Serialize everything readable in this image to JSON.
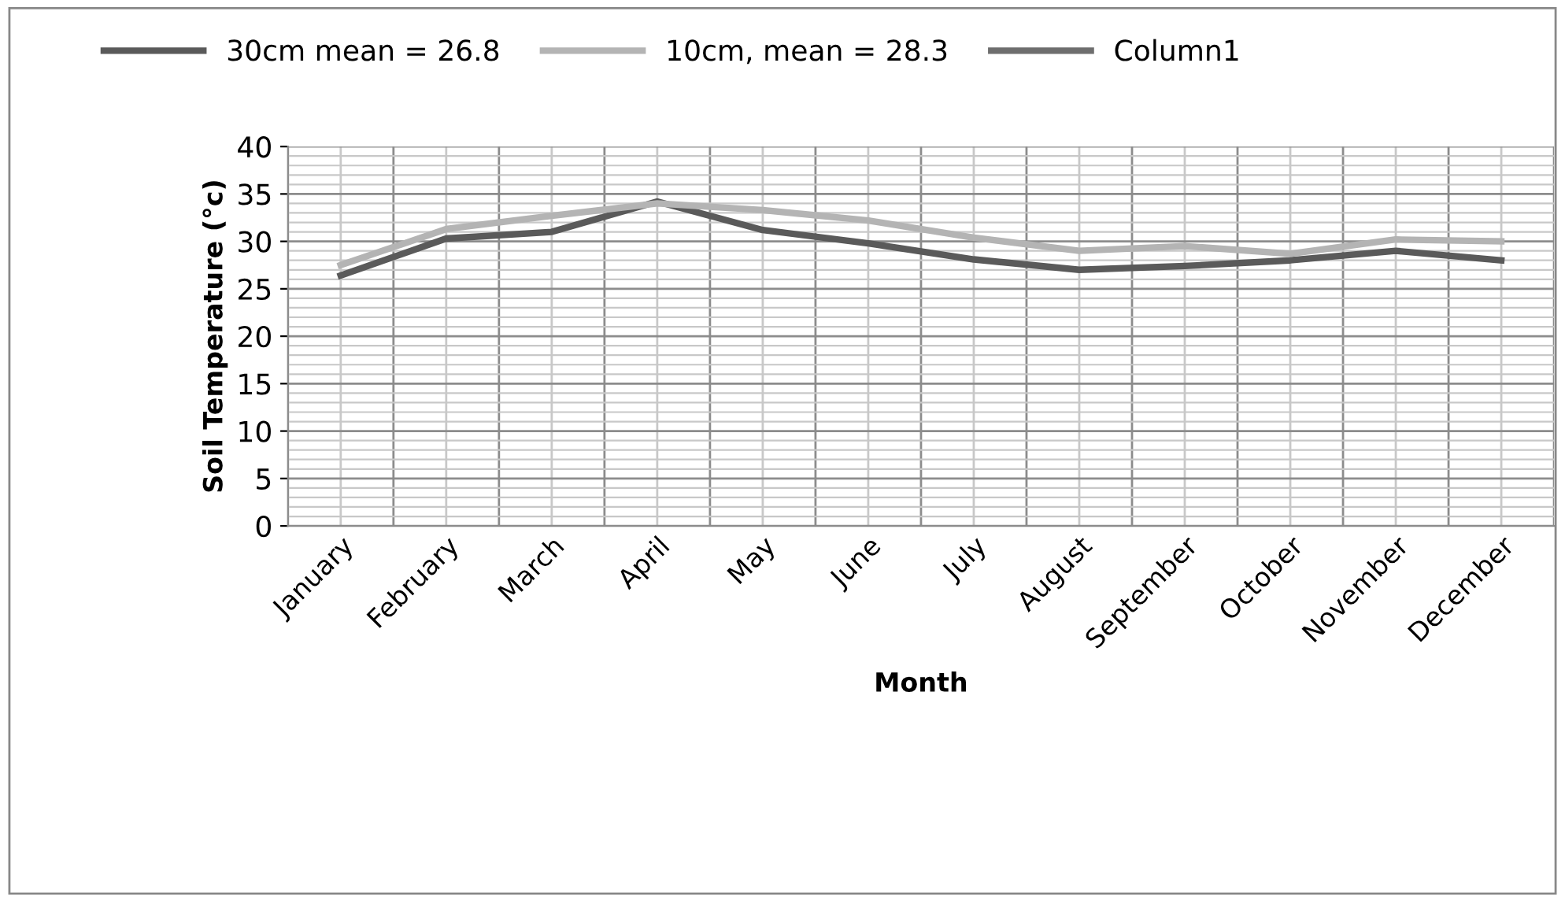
{
  "chart_data": {
    "type": "line",
    "xlabel": "Month",
    "ylabel": "Soil Temperature (°c)",
    "categories": [
      "January",
      "February",
      "March",
      "April",
      "May",
      "June",
      "July",
      "August",
      "September",
      "October",
      "November",
      "December"
    ],
    "series": [
      {
        "name": "30cm mean = 26.8",
        "color": "#5a5a5a",
        "values": [
          26.4,
          30.3,
          31.0,
          34.2,
          31.2,
          29.8,
          28.1,
          27.0,
          27.4,
          28.0,
          29.0,
          28.0
        ]
      },
      {
        "name": "10cm, mean = 28.3",
        "color": "#b4b4b4",
        "values": [
          27.5,
          31.3,
          32.7,
          34.0,
          33.3,
          32.2,
          30.4,
          29.0,
          29.5,
          28.7,
          30.2,
          30.0
        ]
      },
      {
        "name": "Column1",
        "color": "#6e6e6e",
        "values": [
          null,
          null,
          null,
          null,
          null,
          null,
          null,
          null,
          null,
          null,
          null,
          null
        ]
      }
    ],
    "ylim": [
      0,
      40
    ],
    "yticks": [
      0,
      5,
      10,
      15,
      20,
      25,
      30,
      35,
      40
    ],
    "grid": true,
    "legend": "top",
    "marker": "none",
    "line_style": "solid"
  }
}
